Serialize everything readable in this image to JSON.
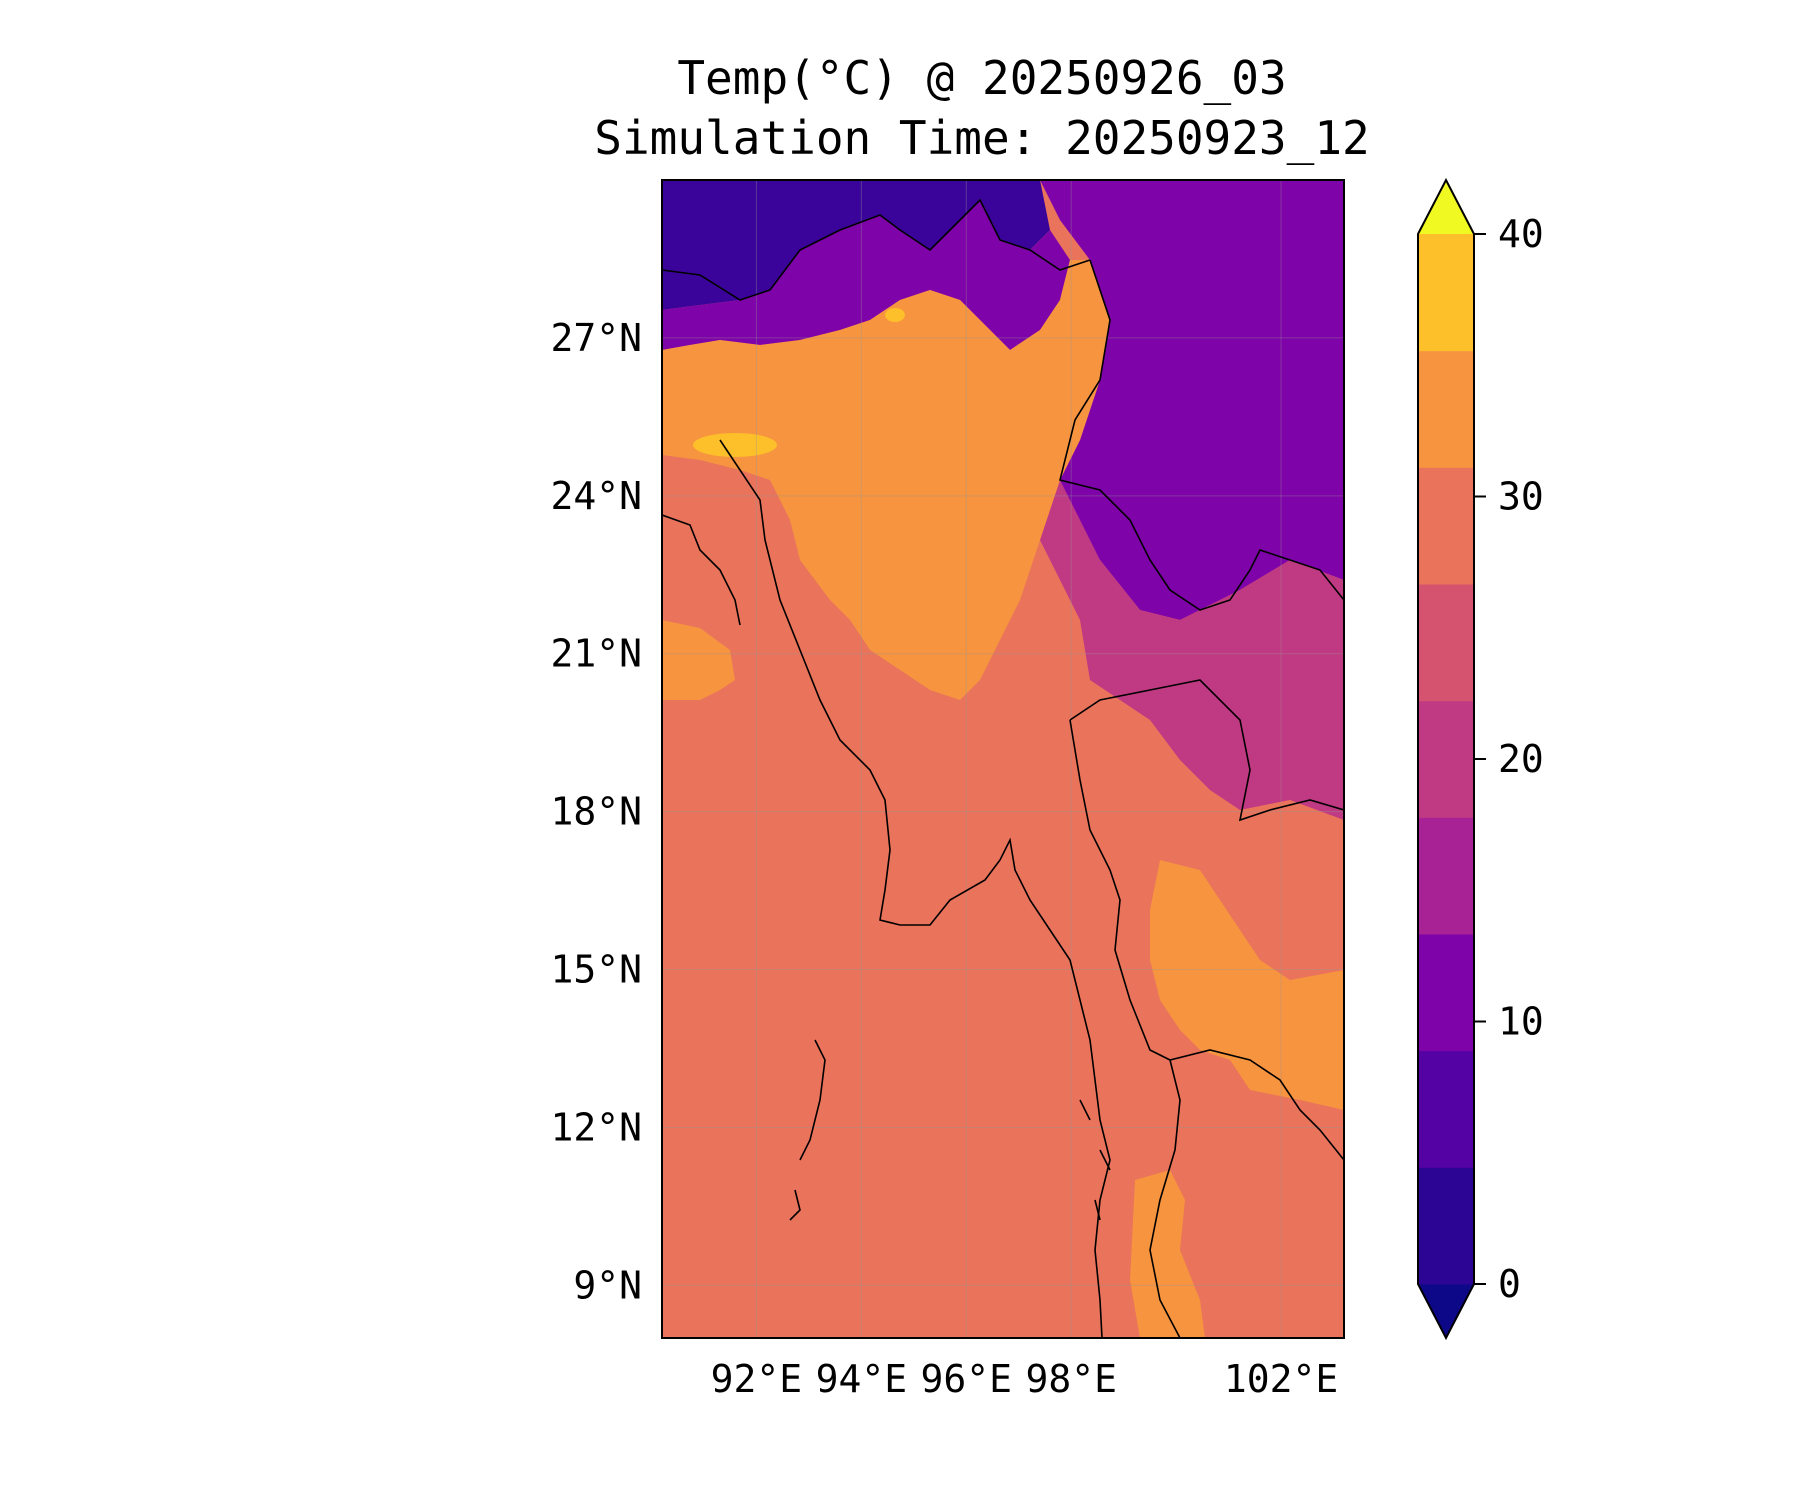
{
  "figure": {
    "title_line1": "Temp(°C) @ 20250926_03",
    "title_line2": "Simulation Time: 20250923_12"
  },
  "map": {
    "lat_labels": [
      "27°N",
      "24°N",
      "21°N",
      "18°N",
      "15°N",
      "12°N",
      "9°N"
    ],
    "lat_values": [
      27,
      24,
      21,
      18,
      15,
      12,
      9
    ],
    "lon_labels": [
      "92°E",
      "94°E",
      "96°E",
      "98°E",
      "102°E"
    ],
    "lon_values": [
      92,
      94,
      96,
      98,
      102
    ],
    "lon_range": [
      90.2,
      103.2
    ],
    "lat_range": [
      8.0,
      30.0
    ]
  },
  "colorbar": {
    "tick_labels": [
      "40",
      "30",
      "20",
      "10",
      "0"
    ],
    "tick_values": [
      40,
      30,
      20,
      10,
      0
    ],
    "levels": [
      -5,
      0,
      5,
      10,
      15,
      20,
      25,
      30,
      35,
      40,
      45
    ],
    "colors": [
      "#0d0887",
      "#2c0594",
      "#5402a3",
      "#7e03a8",
      "#a82296",
      "#c03a83",
      "#d5536f",
      "#e9735b",
      "#f69440",
      "#fdbf2a",
      "#f0f921"
    ],
    "extend": "both"
  },
  "colors": {
    "cold": "#3a049a",
    "cool": "#7e03a8",
    "mild": "#c03a83",
    "warm": "#e9735b",
    "hot": "#f69440",
    "very_hot": "#fdbf2a",
    "sea": "#e9735b",
    "coast": "#000000"
  }
}
